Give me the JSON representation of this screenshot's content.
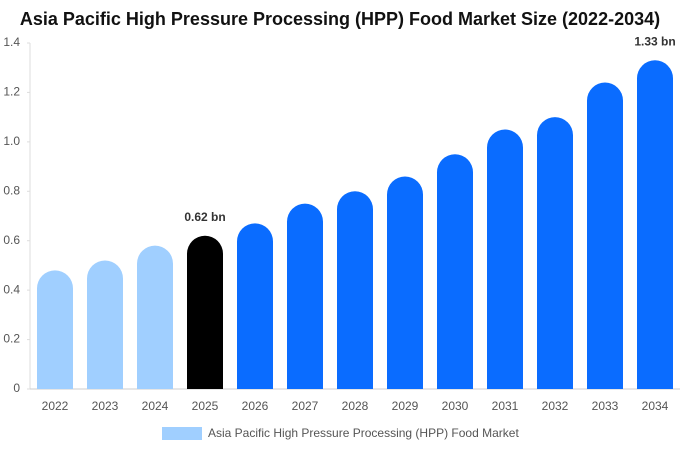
{
  "chart_data": {
    "type": "bar",
    "title": "Asia Pacific High Pressure Processing (HPP) Food Market Size (2022-2034)",
    "categories": [
      "2022",
      "2023",
      "2024",
      "2025",
      "2026",
      "2027",
      "2028",
      "2029",
      "2030",
      "2031",
      "2032",
      "2033",
      "2034"
    ],
    "series": [
      {
        "name": "Asia Pacific High Pressure Processing (HPP) Food Market",
        "color": "#a0cfff",
        "values": [
          0.48,
          0.52,
          0.58,
          0.62,
          0.67,
          0.75,
          0.8,
          0.86,
          0.95,
          1.05,
          1.1,
          1.24,
          1.33
        ],
        "value_labels": [
          null,
          null,
          null,
          "0.62 bn",
          null,
          null,
          null,
          null,
          null,
          null,
          null,
          null,
          "1.33 bn"
        ],
        "colors": [
          "#a0cfff",
          "#a0cfff",
          "#a0cfff",
          "#000000",
          "#0a6cff",
          "#0a6cff",
          "#0a6cff",
          "#0a6cff",
          "#0a6cff",
          "#0a6cff",
          "#0a6cff",
          "#0a6cff",
          "#0a6cff"
        ]
      }
    ],
    "ylim": [
      0,
      1.4
    ],
    "yticks": [
      0,
      0.2,
      0.4,
      0.6,
      0.8,
      {
        "value": 1,
        "label": "1.0"
      },
      1.2,
      1.4
    ],
    "grid": false
  }
}
